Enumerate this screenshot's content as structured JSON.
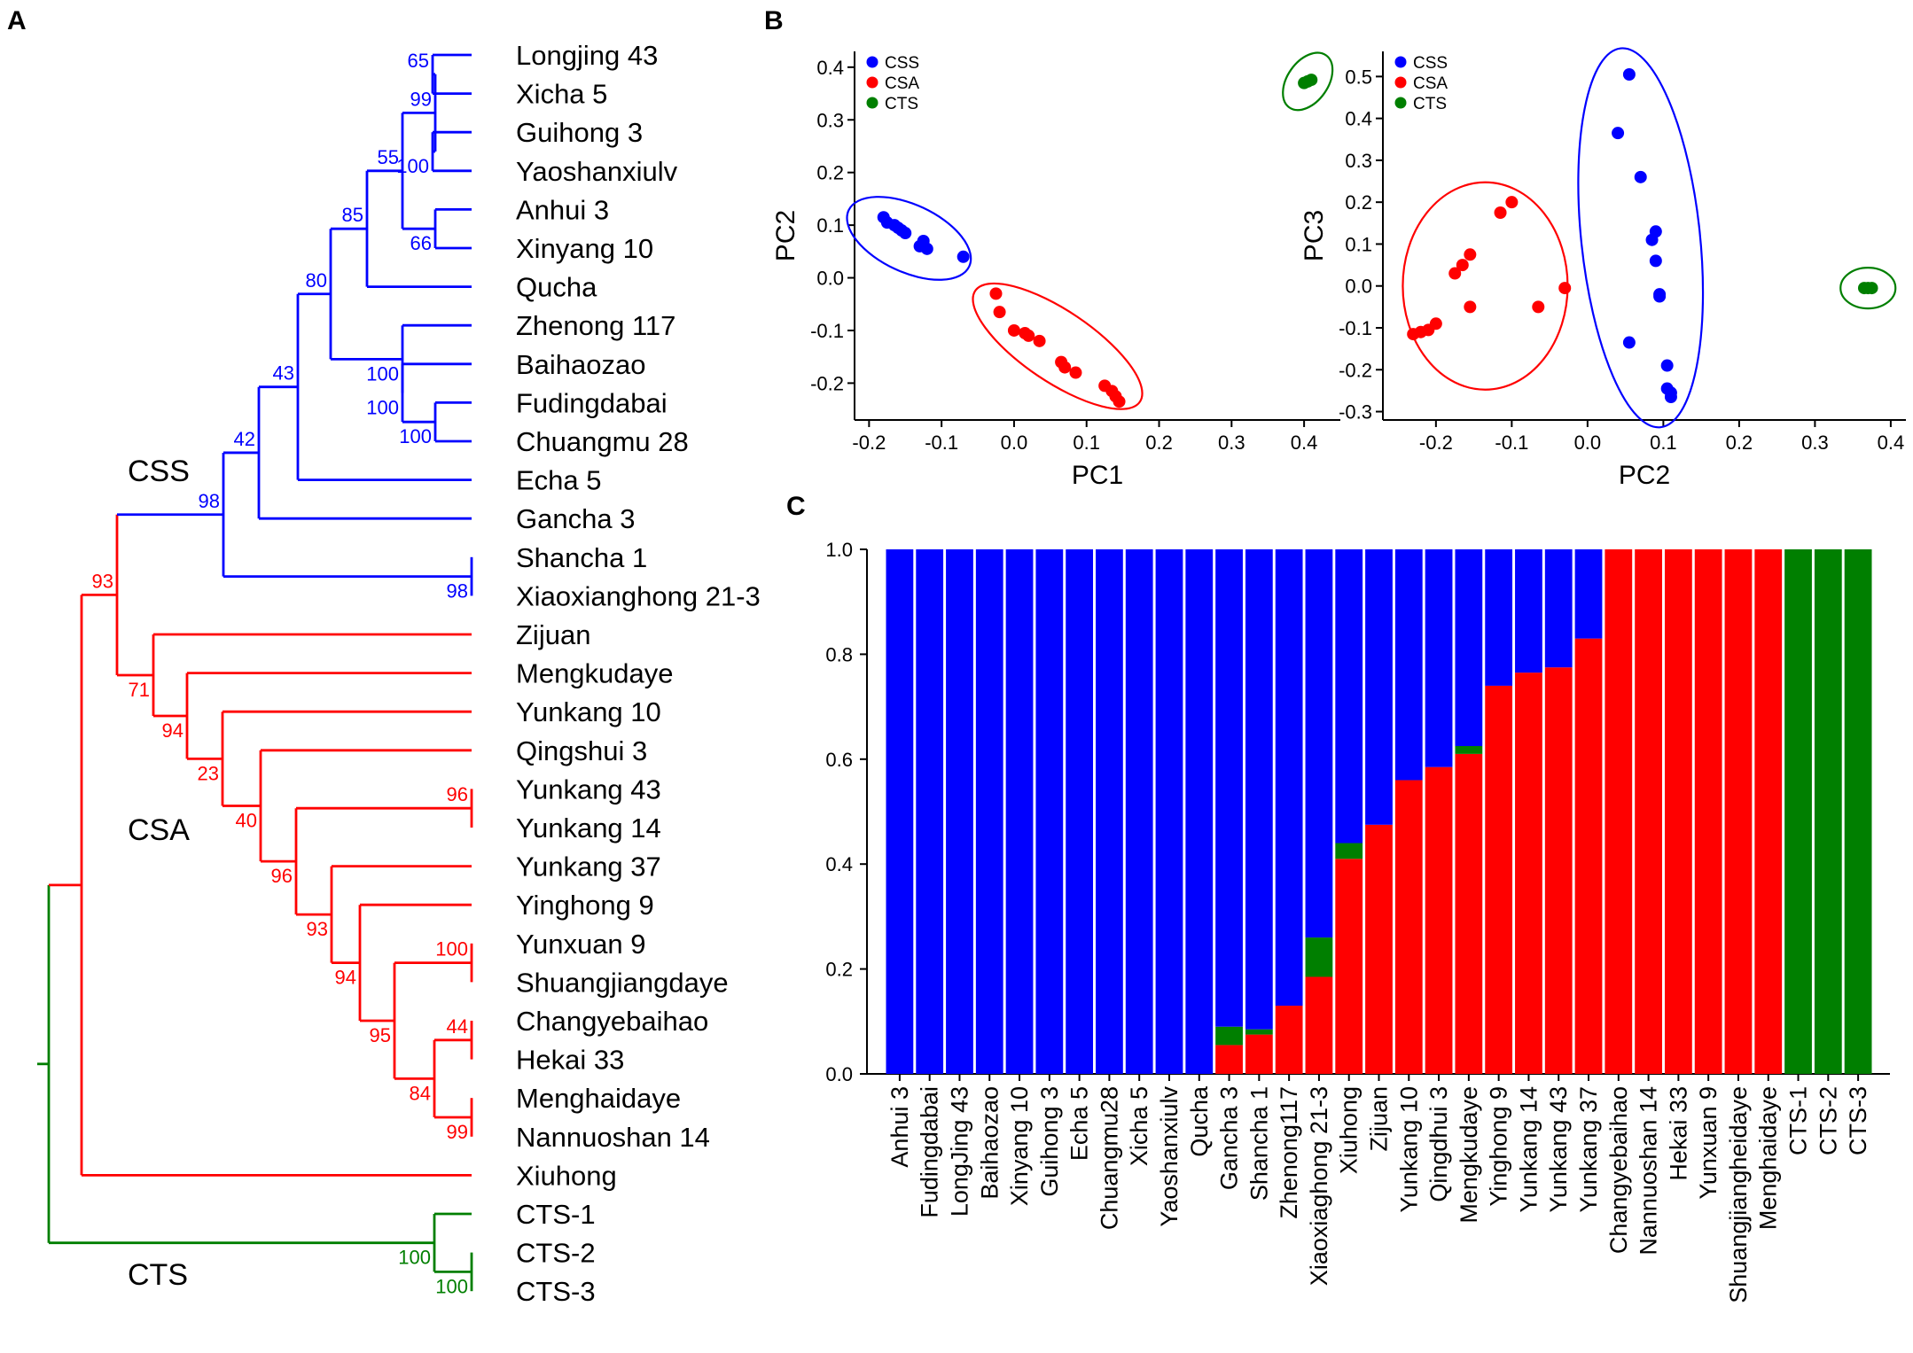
{
  "panels": {
    "a": "A",
    "b": "B",
    "c": "C"
  },
  "colors": {
    "css": "#0000ff",
    "csa": "#ff0000",
    "cts": "#007f00"
  },
  "tree": {
    "groups": [
      {
        "key": "css",
        "label": "CSS"
      },
      {
        "key": "csa",
        "label": "CSA"
      },
      {
        "key": "cts",
        "label": "CTS"
      }
    ],
    "leaves": [
      "Longjing 43",
      "Xicha 5",
      "Guihong 3",
      "Yaoshanxiulv",
      "Anhui 3",
      "Xinyang 10",
      "Qucha",
      "Zhenong 117",
      "Baihaozao",
      "Fudingdabai",
      "Chuangmu 28",
      "Echa 5",
      "Gancha 3",
      "Shancha 1",
      "Xiaoxianghong 21-3",
      "Zijuan",
      "Mengkudaye",
      "Yunkang 10",
      "Qingshui 3",
      "Yunkang 43",
      "Yunkang 14",
      "Yunkang 37",
      "Yinghong 9",
      "Yunxuan 9",
      "Shuangjiangdaye",
      "Changyebaihao",
      "Hekai 33",
      "Menghaidaye",
      "Nannuoshan 14",
      "Xiuhong",
      "CTS-1",
      "CTS-2",
      "CTS-3"
    ],
    "bootstrap": [
      {
        "v": "65",
        "c": "css"
      },
      {
        "v": "99",
        "c": "css"
      },
      {
        "v": "100",
        "c": "css"
      },
      {
        "v": "55",
        "c": "css"
      },
      {
        "v": "66",
        "c": "css"
      },
      {
        "v": "85",
        "c": "css"
      },
      {
        "v": "80",
        "c": "css"
      },
      {
        "v": "100",
        "c": "css"
      },
      {
        "v": "100",
        "c": "css"
      },
      {
        "v": "100",
        "c": "css"
      },
      {
        "v": "43",
        "c": "css"
      },
      {
        "v": "42",
        "c": "css"
      },
      {
        "v": "98",
        "c": "css"
      },
      {
        "v": "98",
        "c": "css"
      },
      {
        "v": "93",
        "c": "csa"
      },
      {
        "v": "71",
        "c": "csa"
      },
      {
        "v": "94",
        "c": "csa"
      },
      {
        "v": "23",
        "c": "csa"
      },
      {
        "v": "40",
        "c": "csa"
      },
      {
        "v": "96",
        "c": "csa"
      },
      {
        "v": "96",
        "c": "csa"
      },
      {
        "v": "93",
        "c": "csa"
      },
      {
        "v": "94",
        "c": "csa"
      },
      {
        "v": "100",
        "c": "csa"
      },
      {
        "v": "95",
        "c": "csa"
      },
      {
        "v": "44",
        "c": "csa"
      },
      {
        "v": "84",
        "c": "csa"
      },
      {
        "v": "99",
        "c": "csa"
      },
      {
        "v": "100",
        "c": "cts"
      },
      {
        "v": "100",
        "c": "cts"
      }
    ]
  },
  "chart_data": [
    {
      "type": "scatter",
      "title": "",
      "xlabel": "PC1",
      "ylabel": "PC2",
      "xlim": [
        -0.22,
        0.45
      ],
      "ylim": [
        -0.27,
        0.43
      ],
      "xticks": [
        "-0.2",
        "-0.1",
        "0.0",
        "0.1",
        "0.2",
        "0.3",
        "0.4"
      ],
      "yticks": [
        "0.4",
        "0.3",
        "0.2",
        "0.1",
        "0.0",
        "-0.1",
        "-0.2"
      ],
      "xtick_values": [
        -0.2,
        -0.1,
        0.0,
        0.1,
        0.2,
        0.3,
        0.4
      ],
      "ytick_values": [
        0.4,
        0.3,
        0.2,
        0.1,
        0.0,
        -0.1,
        -0.2
      ],
      "legend": [
        "CSS",
        "CSA",
        "CTS"
      ],
      "series": [
        {
          "name": "CSS",
          "points": [
            [
              -0.18,
              0.115
            ],
            [
              -0.175,
              0.105
            ],
            [
              -0.165,
              0.1
            ],
            [
              -0.16,
              0.095
            ],
            [
              -0.155,
              0.09
            ],
            [
              -0.15,
              0.085
            ],
            [
              -0.125,
              0.07
            ],
            [
              -0.13,
              0.06
            ],
            [
              -0.12,
              0.055
            ],
            [
              -0.07,
              0.04
            ]
          ]
        },
        {
          "name": "CSA",
          "points": [
            [
              -0.025,
              -0.03
            ],
            [
              -0.02,
              -0.065
            ],
            [
              0.0,
              -0.1
            ],
            [
              0.015,
              -0.105
            ],
            [
              0.02,
              -0.11
            ],
            [
              0.035,
              -0.12
            ],
            [
              0.065,
              -0.16
            ],
            [
              0.07,
              -0.17
            ],
            [
              0.085,
              -0.18
            ],
            [
              0.125,
              -0.205
            ],
            [
              0.135,
              -0.215
            ],
            [
              0.14,
              -0.225
            ],
            [
              0.145,
              -0.235
            ]
          ]
        },
        {
          "name": "CTS",
          "points": [
            [
              0.4,
              0.37
            ],
            [
              0.405,
              0.373
            ],
            [
              0.41,
              0.376
            ]
          ]
        }
      ],
      "ellipses": [
        "CSS",
        "CSA",
        "CTS"
      ]
    },
    {
      "type": "scatter",
      "title": "",
      "xlabel": "PC2",
      "ylabel": "PC3",
      "xlim": [
        -0.27,
        0.42
      ],
      "ylim": [
        -0.32,
        0.56
      ],
      "xticks": [
        "-0.2",
        "-0.1",
        "0.0",
        "0.1",
        "0.2",
        "0.3",
        "0.4"
      ],
      "yticks": [
        "0.5",
        "0.4",
        "0.3",
        "0.2",
        "0.1",
        "0.0",
        "-0.1",
        "-0.2",
        "-0.3"
      ],
      "xtick_values": [
        -0.2,
        -0.1,
        0.0,
        0.1,
        0.2,
        0.3,
        0.4
      ],
      "ytick_values": [
        0.5,
        0.4,
        0.3,
        0.2,
        0.1,
        0.0,
        -0.1,
        -0.2,
        -0.3
      ],
      "legend": [
        "CSS",
        "CSA",
        "CTS"
      ],
      "series": [
        {
          "name": "CSS",
          "points": [
            [
              0.055,
              0.505
            ],
            [
              0.04,
              0.365
            ],
            [
              0.07,
              0.26
            ],
            [
              0.09,
              0.13
            ],
            [
              0.085,
              0.11
            ],
            [
              0.09,
              0.06
            ],
            [
              0.095,
              -0.02
            ],
            [
              0.095,
              -0.025
            ],
            [
              0.055,
              -0.135
            ],
            [
              0.105,
              -0.19
            ],
            [
              0.105,
              -0.245
            ],
            [
              0.11,
              -0.255
            ],
            [
              0.11,
              -0.265
            ]
          ]
        },
        {
          "name": "CSA",
          "points": [
            [
              -0.23,
              -0.115
            ],
            [
              -0.22,
              -0.11
            ],
            [
              -0.21,
              -0.105
            ],
            [
              -0.2,
              -0.09
            ],
            [
              -0.175,
              0.03
            ],
            [
              -0.165,
              0.05
            ],
            [
              -0.155,
              0.075
            ],
            [
              -0.155,
              -0.05
            ],
            [
              -0.115,
              0.175
            ],
            [
              -0.1,
              0.2
            ],
            [
              -0.065,
              -0.05
            ],
            [
              -0.03,
              -0.005
            ]
          ]
        },
        {
          "name": "CTS",
          "points": [
            [
              0.365,
              -0.005
            ],
            [
              0.37,
              -0.005
            ],
            [
              0.375,
              -0.005
            ]
          ]
        }
      ],
      "ellipses": [
        "CSS",
        "CSA",
        "CTS"
      ]
    },
    {
      "type": "bar",
      "stacked": true,
      "title": "",
      "xlabel": "",
      "ylabel": "",
      "ylim": [
        0,
        1
      ],
      "yticks": [
        "1.0",
        "0.8",
        "0.6",
        "0.4",
        "0.2",
        "0.0"
      ],
      "ytick_values": [
        1.0,
        0.8,
        0.6,
        0.4,
        0.2,
        0.0
      ],
      "categories": [
        "Anhui 3",
        "Fudingdabai",
        "LongJing 43",
        "Baihaozao",
        "Xinyang 10",
        "Guihong 3",
        "Echa 5",
        "Chuangmu28",
        "Xicha 5",
        "Yaoshanxiulv",
        "Qucha",
        "Gancha 3",
        "Shancha 1",
        "Zhenong117",
        "Xiaoxiaghong 21-3",
        "Xiuhong",
        "Zijuan",
        "Yunkang 10",
        "Qingdhui 3",
        "Mengkudaye",
        "Yinghong 9",
        "Yunkang 14",
        "Yunkang 43",
        "Yunkang 37",
        "Changyebaihao",
        "Nannuoshan 14",
        "Hekai 33",
        "Yunxuan 9",
        "Shuangjiangheidaye",
        "Menghaidaye",
        "CTS-1",
        "CTS-2",
        "CTS-3"
      ],
      "series": [
        {
          "name": "CSA",
          "values": [
            0,
            0,
            0,
            0,
            0,
            0,
            0,
            0,
            0,
            0,
            0,
            0.055,
            0.075,
            0.13,
            0.185,
            0.41,
            0.475,
            0.56,
            0.585,
            0.61,
            0.74,
            0.765,
            0.775,
            0.83,
            1,
            1,
            1,
            1,
            1,
            1,
            0,
            0,
            0
          ]
        },
        {
          "name": "CTS",
          "values": [
            0,
            0,
            0,
            0,
            0,
            0,
            0,
            0,
            0,
            0,
            0,
            0.035,
            0.01,
            0,
            0.075,
            0.03,
            0,
            0,
            0,
            0.015,
            0,
            0,
            0,
            0,
            0,
            0,
            0,
            0,
            0,
            0,
            1,
            1,
            1
          ]
        },
        {
          "name": "CSS",
          "values": [
            1,
            1,
            1,
            1,
            1,
            1,
            1,
            1,
            1,
            1,
            1,
            0.91,
            0.915,
            0.87,
            0.74,
            0.56,
            0.525,
            0.44,
            0.415,
            0.375,
            0.26,
            0.235,
            0.225,
            0.17,
            0,
            0,
            0,
            0,
            0,
            0,
            0,
            0,
            0
          ]
        }
      ]
    }
  ]
}
